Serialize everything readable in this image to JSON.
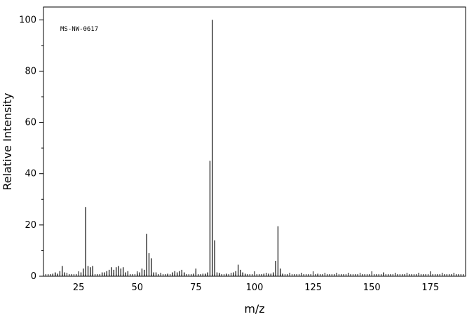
{
  "chart_data": {
    "type": "bar",
    "annotation": "MS-NW-0617",
    "xlabel": "m/z",
    "ylabel": "Relative Intensity",
    "xlim": [
      10,
      190
    ],
    "ylim": [
      0,
      105
    ],
    "x_major_ticks": [
      25,
      50,
      75,
      100,
      125,
      150,
      175
    ],
    "x_minor_step": 1,
    "y_major_ticks": [
      0,
      20,
      40,
      60,
      80,
      100
    ],
    "y_minor_step": 10,
    "grid": false,
    "series": [
      {
        "mz": [
          14,
          15,
          16,
          17,
          18,
          19,
          26,
          27,
          28,
          29,
          30,
          31,
          35,
          36,
          37,
          38,
          39,
          40,
          41,
          42,
          43,
          44,
          45,
          46,
          50,
          51,
          52,
          53,
          54,
          55,
          56,
          57,
          58,
          63,
          65,
          66,
          67,
          68,
          69,
          70,
          74,
          75,
          78,
          79,
          80,
          81,
          82,
          83,
          84,
          85,
          88,
          91,
          92,
          93,
          94,
          95,
          96,
          104,
          106,
          107,
          108,
          109,
          110,
          111,
          112,
          127,
          155
        ],
        "intensity": [
          1,
          1.5,
          1,
          2,
          4,
          1.5,
          1.5,
          3,
          27,
          4,
          3.5,
          4,
          1.5,
          1.5,
          2,
          2.5,
          3.5,
          2.5,
          3.5,
          4,
          3,
          3.5,
          1.5,
          2,
          1,
          1.5,
          3,
          2.5,
          16.5,
          9,
          7,
          1.5,
          1.5,
          1,
          1.5,
          2,
          1.5,
          2,
          2.5,
          1.5,
          1,
          3,
          1,
          1,
          1.5,
          45,
          100,
          14,
          1.5,
          1,
          1,
          1.5,
          2,
          4.5,
          2.5,
          1.5,
          1,
          1,
          1,
          1,
          1.5,
          6,
          19.5,
          3,
          1,
          1,
          1.5
        ]
      }
    ]
  }
}
